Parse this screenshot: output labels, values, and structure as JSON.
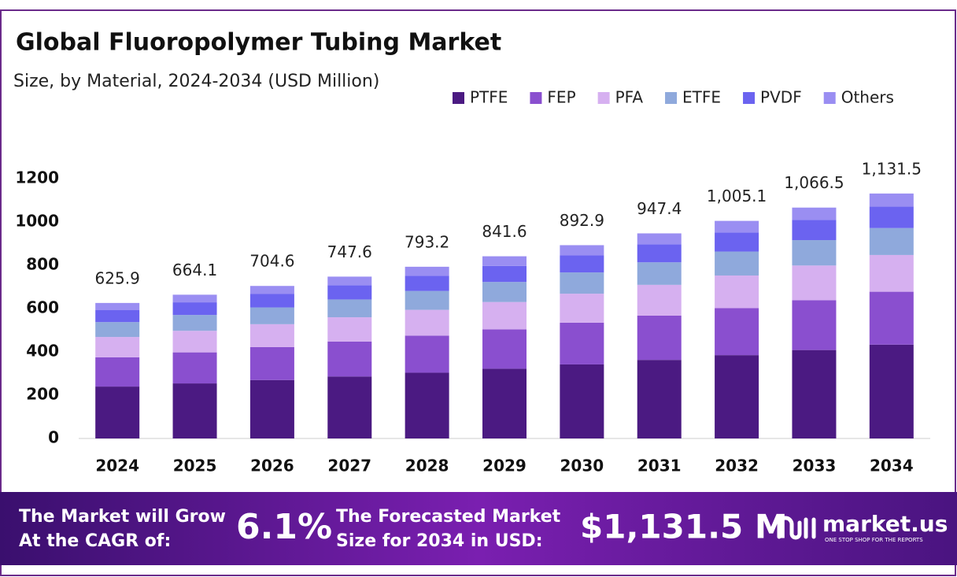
{
  "chart_data": {
    "type": "stacked-bar",
    "title": "Global Fluoropolymer Tubing Market",
    "subtitle": "Size, by Material, 2024-2034 (USD Million)",
    "categories": [
      "2024",
      "2025",
      "2026",
      "2027",
      "2028",
      "2029",
      "2030",
      "2031",
      "2032",
      "2033",
      "2034"
    ],
    "series": [
      {
        "name": "PTFE",
        "color": "#4b1a82",
        "values": [
          239.7,
          254.3,
          269.9,
          286.3,
          303.8,
          322.3,
          342.0,
          362.9,
          384.9,
          408.5,
          433.4
        ]
      },
      {
        "name": "FEP",
        "color": "#8a4fcf",
        "values": [
          135.2,
          143.4,
          152.2,
          161.5,
          171.3,
          181.8,
          192.9,
          204.6,
          217.1,
          230.4,
          244.4
        ]
      },
      {
        "name": "PFA",
        "color": "#d6b0f0",
        "values": [
          93.9,
          99.6,
          105.7,
          112.1,
          119.0,
          126.2,
          133.9,
          142.1,
          150.8,
          160.0,
          169.7
        ]
      },
      {
        "name": "ETFE",
        "color": "#8fa9dc",
        "values": [
          68.8,
          73.1,
          77.5,
          82.2,
          87.3,
          92.6,
          98.2,
          104.2,
          110.6,
          117.3,
          124.5
        ]
      },
      {
        "name": "PVDF",
        "color": "#6b63f0",
        "values": [
          55.1,
          58.4,
          62.0,
          65.8,
          69.8,
          74.1,
          78.6,
          83.4,
          88.4,
          93.9,
          99.6
        ]
      },
      {
        "name": "Others",
        "color": "#9a8ef2",
        "values": [
          33.2,
          35.3,
          37.3,
          39.7,
          42.0,
          44.6,
          47.3,
          50.2,
          53.3,
          56.4,
          59.9
        ]
      }
    ],
    "totals": [
      625.9,
      664.1,
      704.6,
      747.6,
      793.2,
      841.6,
      892.9,
      947.4,
      1005.1,
      1066.5,
      1131.5
    ],
    "total_labels": [
      "625.9",
      "664.1",
      "704.6",
      "747.6",
      "793.2",
      "841.6",
      "892.9",
      "947.4",
      "1,005.1",
      "1,066.5",
      "1,131.5"
    ],
    "ylim": [
      0,
      1200
    ],
    "yticks": [
      0,
      200,
      400,
      600,
      800,
      1000,
      1200
    ],
    "grid": false
  },
  "footer": {
    "cagr_text": [
      "The Market will Grow",
      "At the CAGR of:"
    ],
    "cagr": "6.1%",
    "forecast_text": [
      "The Forecasted Market",
      "Size for 2034 in USD:"
    ],
    "forecast": "$1,131.5 M",
    "brand": "market.us",
    "tagline": "ONE STOP SHOP FOR THE REPORTS"
  }
}
